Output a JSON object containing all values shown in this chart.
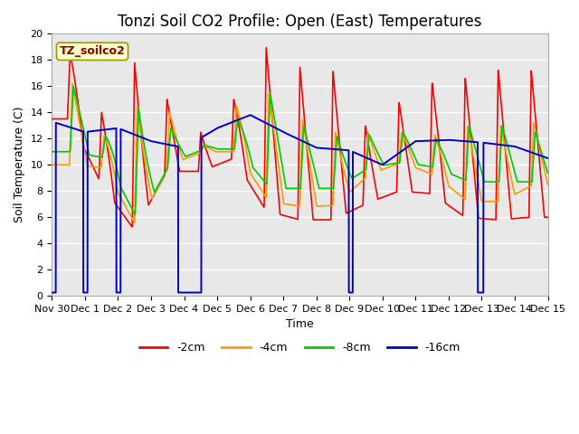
{
  "title": "Tonzi Soil CO2 Profile: Open (East) Temperatures",
  "ylabel": "Soil Temperature (C)",
  "xlabel": "Time",
  "annotation": "TZ_soilco2",
  "ylim": [
    0,
    20
  ],
  "legend": [
    "-2cm",
    "-4cm",
    "-8cm",
    "-16cm"
  ],
  "colors": [
    "#ff0000",
    "#ff9900",
    "#00cc00",
    "#0000cc"
  ],
  "background_color": "#e8e8e8",
  "x_tick_labels": [
    "Nov 30",
    "Dec 1",
    "Dec 2",
    "Dec 3",
    "Dec 4",
    "Dec 5",
    "Dec 6",
    "Dec 7",
    "Dec 8",
    "Dec 9",
    "Dec 10",
    "Dec 11",
    "Dec 12",
    "Dec 13",
    "Dec 14",
    "Dec 15"
  ],
  "title_fontsize": 12,
  "axis_fontsize": 9,
  "tick_fontsize": 8,
  "linewidth": 1.2
}
